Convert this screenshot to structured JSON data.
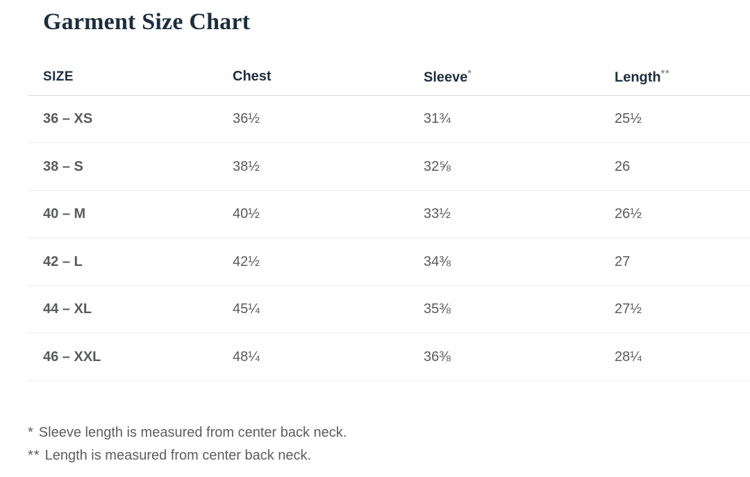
{
  "page": {
    "title": "Garment Size Chart"
  },
  "table": {
    "headers": {
      "size": "SIZE",
      "chest": "Chest",
      "sleeve": "Sleeve",
      "sleeve_suffix": "*",
      "length": "Length",
      "length_suffix": "**"
    },
    "rows": [
      {
        "size": "36 – XS",
        "chest": "36½",
        "sleeve": "31¾",
        "length": "25½"
      },
      {
        "size": "38 – S",
        "chest": "38½",
        "sleeve": "32⅝",
        "length": "26"
      },
      {
        "size": "40 – M",
        "chest": "40½",
        "sleeve": "33½",
        "length": "26½"
      },
      {
        "size": "42 – L",
        "chest": "42½",
        "sleeve": "34⅜",
        "length": "27"
      },
      {
        "size": "44 – XL",
        "chest": "45¼",
        "sleeve": "35⅜",
        "length": "27½"
      },
      {
        "size": "46 – XXL",
        "chest": "48¼",
        "sleeve": "36⅜",
        "length": "28¼"
      }
    ]
  },
  "footnotes": [
    {
      "marker": "*",
      "text": "Sleeve length is measured from center back neck."
    },
    {
      "marker": "**",
      "text": "Length is measured from center back neck."
    }
  ],
  "colors": {
    "heading": "#1e2d3e",
    "header_text": "#1e2d3e",
    "body_text": "#58595b",
    "header_border": "#d7d9db",
    "row_border": "#ececec"
  }
}
